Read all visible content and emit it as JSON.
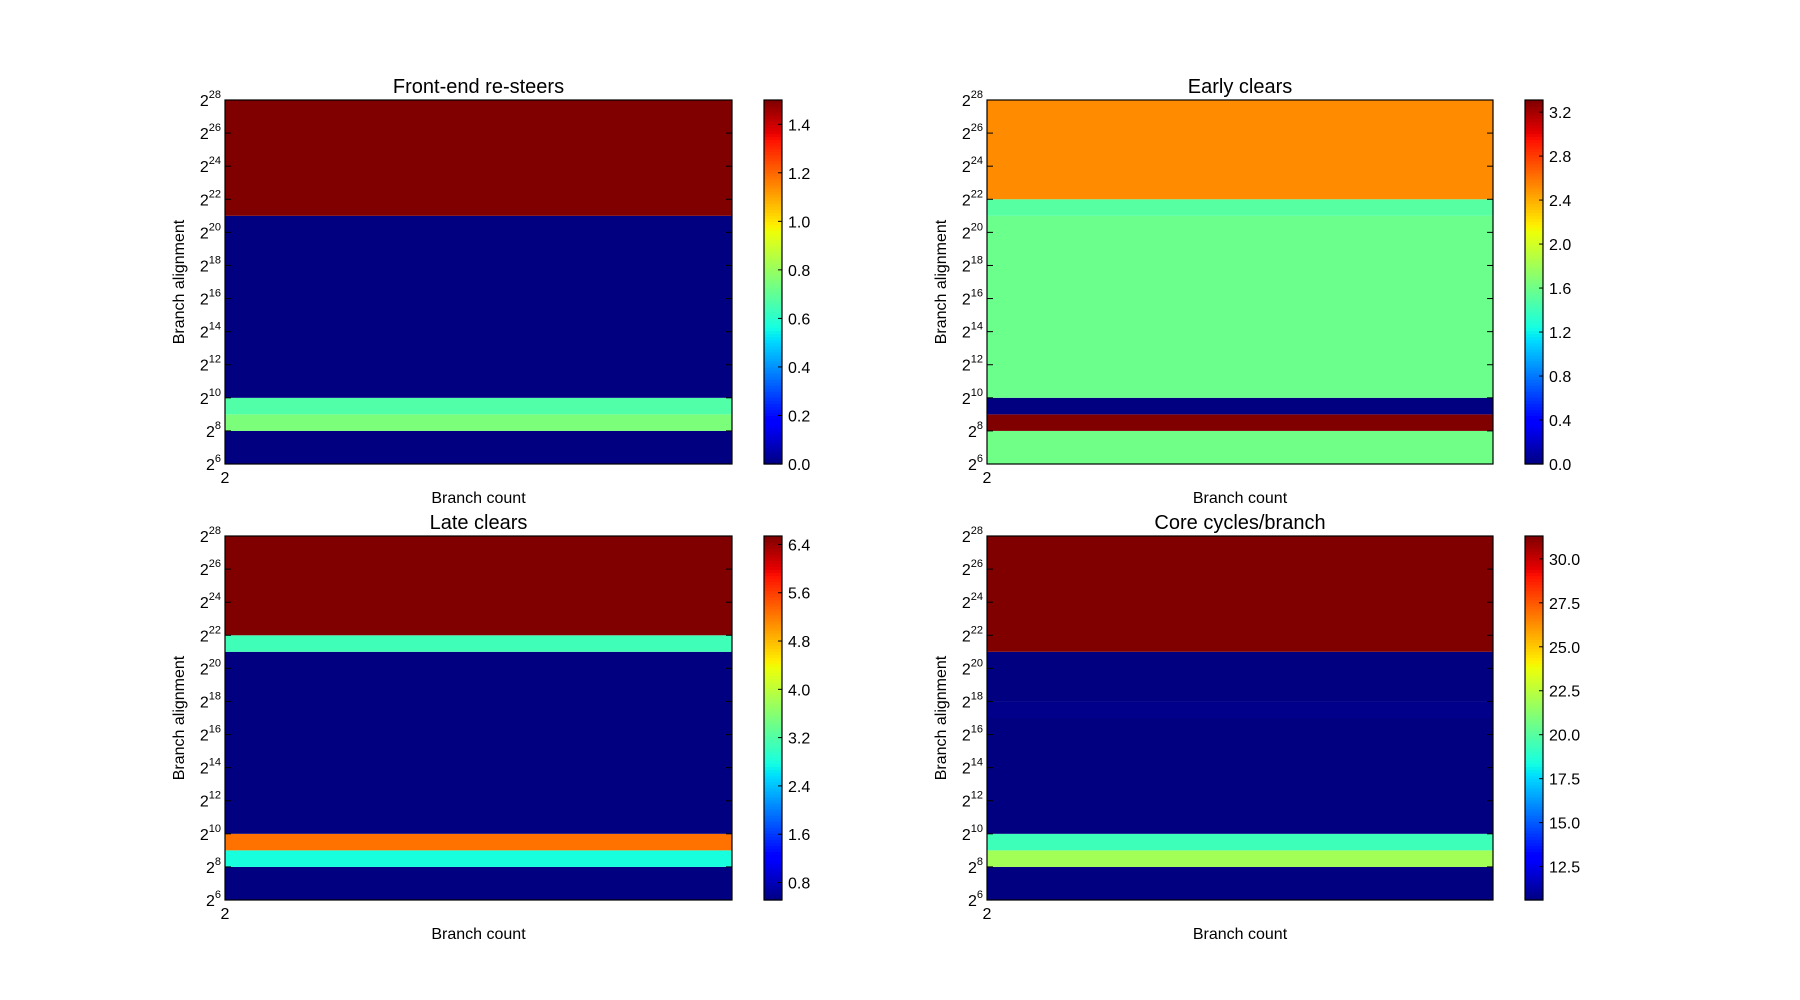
{
  "chart_data": [
    {
      "type": "heatmap",
      "title": "Front-end re-steers",
      "xlabel": "Branch count",
      "ylabel": "Branch alignment",
      "x_ticks": [
        "2"
      ],
      "y_scale": "log2",
      "y_range_exp": [
        6,
        28
      ],
      "y_tick_base": "2",
      "y_tick_exponents": [
        "6",
        "8",
        "10",
        "12",
        "14",
        "16",
        "18",
        "20",
        "22",
        "24",
        "26",
        "28"
      ],
      "colormap": "jet",
      "clim": [
        0.0,
        1.5
      ],
      "colorbar_ticks": [
        "0.0",
        "0.2",
        "0.4",
        "0.6",
        "0.8",
        "1.0",
        "1.2",
        "1.4"
      ],
      "bands": [
        {
          "x": 2,
          "y_exp_from": 6,
          "y_exp_to": 8,
          "value": 0.0
        },
        {
          "x": 2,
          "y_exp_from": 8,
          "y_exp_to": 9,
          "value": 0.75
        },
        {
          "x": 2,
          "y_exp_from": 9,
          "y_exp_to": 10,
          "value": 0.67
        },
        {
          "x": 2,
          "y_exp_from": 10,
          "y_exp_to": 21,
          "value": 0.0
        },
        {
          "x": 2,
          "y_exp_from": 21,
          "y_exp_to": 28,
          "value": 1.5
        }
      ]
    },
    {
      "type": "heatmap",
      "title": "Early clears",
      "xlabel": "Branch count",
      "ylabel": "Branch alignment",
      "x_ticks": [
        "2"
      ],
      "y_scale": "log2",
      "y_range_exp": [
        6,
        28
      ],
      "y_tick_base": "2",
      "y_tick_exponents": [
        "6",
        "8",
        "10",
        "12",
        "14",
        "16",
        "18",
        "20",
        "22",
        "24",
        "26",
        "28"
      ],
      "colormap": "jet",
      "clim": [
        0.0,
        3.31
      ],
      "colorbar_ticks": [
        "0.0",
        "0.4",
        "0.8",
        "1.2",
        "1.6",
        "2.0",
        "2.4",
        "2.8",
        "3.2"
      ],
      "bands": [
        {
          "x": 2,
          "y_exp_from": 6,
          "y_exp_to": 8,
          "value": 1.61
        },
        {
          "x": 2,
          "y_exp_from": 8,
          "y_exp_to": 9,
          "value": 3.31
        },
        {
          "x": 2,
          "y_exp_from": 9,
          "y_exp_to": 10,
          "value": 0.0
        },
        {
          "x": 2,
          "y_exp_from": 10,
          "y_exp_to": 21,
          "value": 1.59
        },
        {
          "x": 2,
          "y_exp_from": 21,
          "y_exp_to": 22,
          "value": 1.5
        },
        {
          "x": 2,
          "y_exp_from": 22,
          "y_exp_to": 28,
          "value": 2.52
        }
      ]
    },
    {
      "type": "heatmap",
      "title": "Late clears",
      "xlabel": "Branch count",
      "ylabel": "Branch alignment",
      "x_ticks": [
        "2"
      ],
      "y_scale": "log2",
      "y_range_exp": [
        6,
        28
      ],
      "y_tick_base": "2",
      "y_tick_exponents": [
        "6",
        "8",
        "10",
        "12",
        "14",
        "16",
        "18",
        "20",
        "22",
        "24",
        "26",
        "28"
      ],
      "colormap": "jet",
      "clim": [
        0.51,
        6.54
      ],
      "colorbar_ticks": [
        "0.8",
        "1.6",
        "2.4",
        "3.2",
        "4.0",
        "4.8",
        "5.6",
        "6.4"
      ],
      "bands": [
        {
          "x": 2,
          "y_exp_from": 6,
          "y_exp_to": 8,
          "value": 0.51
        },
        {
          "x": 2,
          "y_exp_from": 8,
          "y_exp_to": 9,
          "value": 2.8
        },
        {
          "x": 2,
          "y_exp_from": 9,
          "y_exp_to": 10,
          "value": 5.27
        },
        {
          "x": 2,
          "y_exp_from": 10,
          "y_exp_to": 21,
          "value": 0.51
        },
        {
          "x": 2,
          "y_exp_from": 21,
          "y_exp_to": 22,
          "value": 3.08
        },
        {
          "x": 2,
          "y_exp_from": 22,
          "y_exp_to": 28,
          "value": 6.54
        }
      ]
    },
    {
      "type": "heatmap",
      "title": "Core cycles/branch",
      "xlabel": "Branch count",
      "ylabel": "Branch alignment",
      "x_ticks": [
        "2"
      ],
      "y_scale": "log2",
      "y_range_exp": [
        6,
        28
      ],
      "y_tick_base": "2",
      "y_tick_exponents": [
        "6",
        "8",
        "10",
        "12",
        "14",
        "16",
        "18",
        "20",
        "22",
        "24",
        "26",
        "28"
      ],
      "colormap": "jet",
      "clim": [
        10.6,
        31.3
      ],
      "colorbar_ticks": [
        "12.5",
        "15.0",
        "17.5",
        "20.0",
        "22.5",
        "25.0",
        "27.5",
        "30.0"
      ],
      "bands": [
        {
          "x": 2,
          "y_exp_from": 6,
          "y_exp_to": 8,
          "value": 10.6
        },
        {
          "x": 2,
          "y_exp_from": 8,
          "y_exp_to": 9,
          "value": 21.9
        },
        {
          "x": 2,
          "y_exp_from": 9,
          "y_exp_to": 10,
          "value": 19.4
        },
        {
          "x": 2,
          "y_exp_from": 10,
          "y_exp_to": 17,
          "value": 10.6
        },
        {
          "x": 2,
          "y_exp_from": 17,
          "y_exp_to": 18,
          "value": 10.8
        },
        {
          "x": 2,
          "y_exp_from": 18,
          "y_exp_to": 21,
          "value": 10.6
        },
        {
          "x": 2,
          "y_exp_from": 21,
          "y_exp_to": 28,
          "value": 31.3
        }
      ]
    }
  ]
}
